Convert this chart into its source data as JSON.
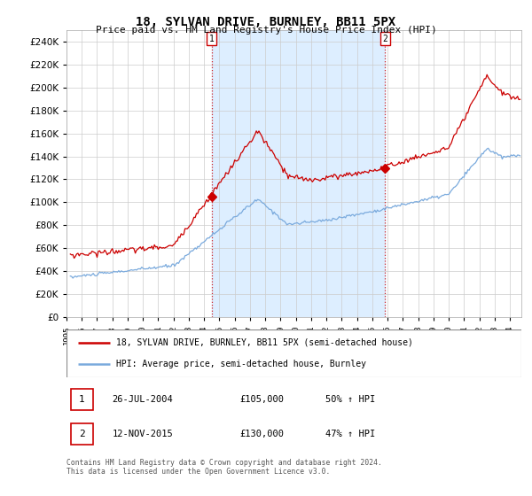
{
  "title": "18, SYLVAN DRIVE, BURNLEY, BB11 5PX",
  "subtitle": "Price paid vs. HM Land Registry's House Price Index (HPI)",
  "hpi_color": "#7aaadd",
  "price_color": "#cc0000",
  "shade_color": "#ddeeff",
  "bg_color": "#ffffff",
  "grid_color": "#cccccc",
  "ylim": [
    0,
    250000
  ],
  "yticks": [
    0,
    20000,
    40000,
    60000,
    80000,
    100000,
    120000,
    140000,
    160000,
    180000,
    200000,
    220000,
    240000
  ],
  "sale1_date": "26-JUL-2004",
  "sale1_price": 105000,
  "sale1_pct": "50%",
  "sale2_date": "12-NOV-2015",
  "sale2_price": 130000,
  "sale2_pct": "47%",
  "legend_line1": "18, SYLVAN DRIVE, BURNLEY, BB11 5PX (semi-detached house)",
  "legend_line2": "HPI: Average price, semi-detached house, Burnley",
  "footer": "Contains HM Land Registry data © Crown copyright and database right 2024.\nThis data is licensed under the Open Government Licence v3.0.",
  "x_start_year": 1995.25,
  "x_end_year": 2024.75
}
